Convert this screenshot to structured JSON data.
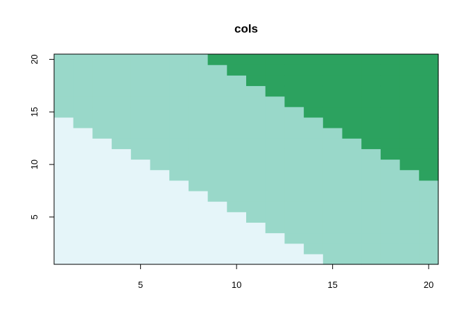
{
  "chart_data": {
    "type": "heatmap",
    "title": "cols",
    "xlabel": "",
    "ylabel": "",
    "x": [
      1,
      2,
      3,
      4,
      5,
      6,
      7,
      8,
      9,
      10,
      11,
      12,
      13,
      14,
      15,
      16,
      17,
      18,
      19,
      20
    ],
    "y": [
      1,
      2,
      3,
      4,
      5,
      6,
      7,
      8,
      9,
      10,
      11,
      12,
      13,
      14,
      15,
      16,
      17,
      18,
      19,
      20
    ],
    "xlim": [
      0.5,
      20.5
    ],
    "ylim": [
      0.5,
      20.5
    ],
    "x_ticks": [
      5,
      10,
      15,
      20
    ],
    "y_ticks": [
      5,
      10,
      15,
      20
    ],
    "grid": false,
    "value_rule": "x + y",
    "breaks": [
      15,
      28
    ],
    "colors": [
      "#e5f5f9",
      "#99d8c9",
      "#2ca25f"
    ]
  }
}
